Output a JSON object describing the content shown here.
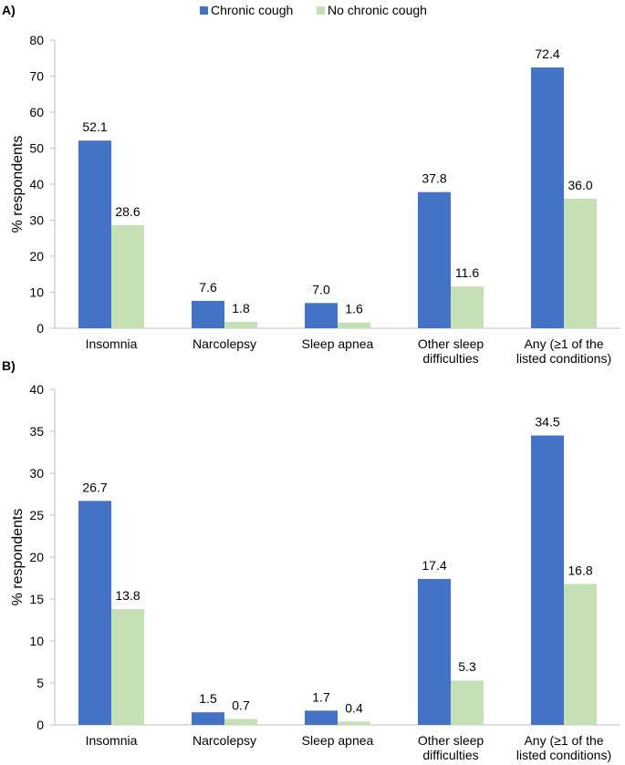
{
  "legend": [
    {
      "label": "Chronic cough",
      "color": "#4472C4"
    },
    {
      "label": "No chronic cough",
      "color": "#C5E0B4"
    }
  ],
  "chart_data": [
    {
      "type": "bar",
      "panel_label": "A)",
      "ylabel": "% respondents",
      "ylim": [
        0,
        80
      ],
      "yticks": [
        0,
        10,
        20,
        30,
        40,
        50,
        60,
        70,
        80
      ],
      "categories": [
        [
          "Insomnia"
        ],
        [
          "Narcolepsy"
        ],
        [
          "Sleep apnea"
        ],
        [
          "Other sleep",
          "difficulties"
        ],
        [
          "Any (≥1 of the",
          "listed conditions)"
        ]
      ],
      "series": [
        {
          "name": "Chronic cough",
          "color": "#4472C4",
          "values": [
            52.1,
            7.6,
            7.0,
            37.8,
            72.4
          ],
          "labels": [
            "52.1",
            "7.6",
            "7.0",
            "37.8",
            "72.4"
          ]
        },
        {
          "name": "No chronic cough",
          "color": "#C5E0B4",
          "values": [
            28.6,
            1.8,
            1.6,
            11.6,
            36.0
          ],
          "labels": [
            "28.6",
            "1.8",
            "1.6",
            "11.6",
            "36.0"
          ]
        }
      ]
    },
    {
      "type": "bar",
      "panel_label": "B)",
      "ylabel": "% respondents",
      "ylim": [
        0,
        40
      ],
      "yticks": [
        0,
        5,
        10,
        15,
        20,
        25,
        30,
        35,
        40
      ],
      "categories": [
        [
          "Insomnia"
        ],
        [
          "Narcolepsy"
        ],
        [
          "Sleep apnea"
        ],
        [
          "Other sleep",
          "difficulties"
        ],
        [
          "Any (≥1 of the",
          "listed conditions)"
        ]
      ],
      "series": [
        {
          "name": "Chronic cough",
          "color": "#4472C4",
          "values": [
            26.7,
            1.5,
            1.7,
            17.4,
            34.5
          ],
          "labels": [
            "26.7",
            "1.5",
            "1.7",
            "17.4",
            "34.5"
          ]
        },
        {
          "name": "No chronic cough",
          "color": "#C5E0B4",
          "values": [
            13.8,
            0.7,
            0.4,
            5.3,
            16.8
          ],
          "labels": [
            "13.8",
            "0.7",
            "0.4",
            "5.3",
            "16.8"
          ]
        }
      ]
    }
  ]
}
